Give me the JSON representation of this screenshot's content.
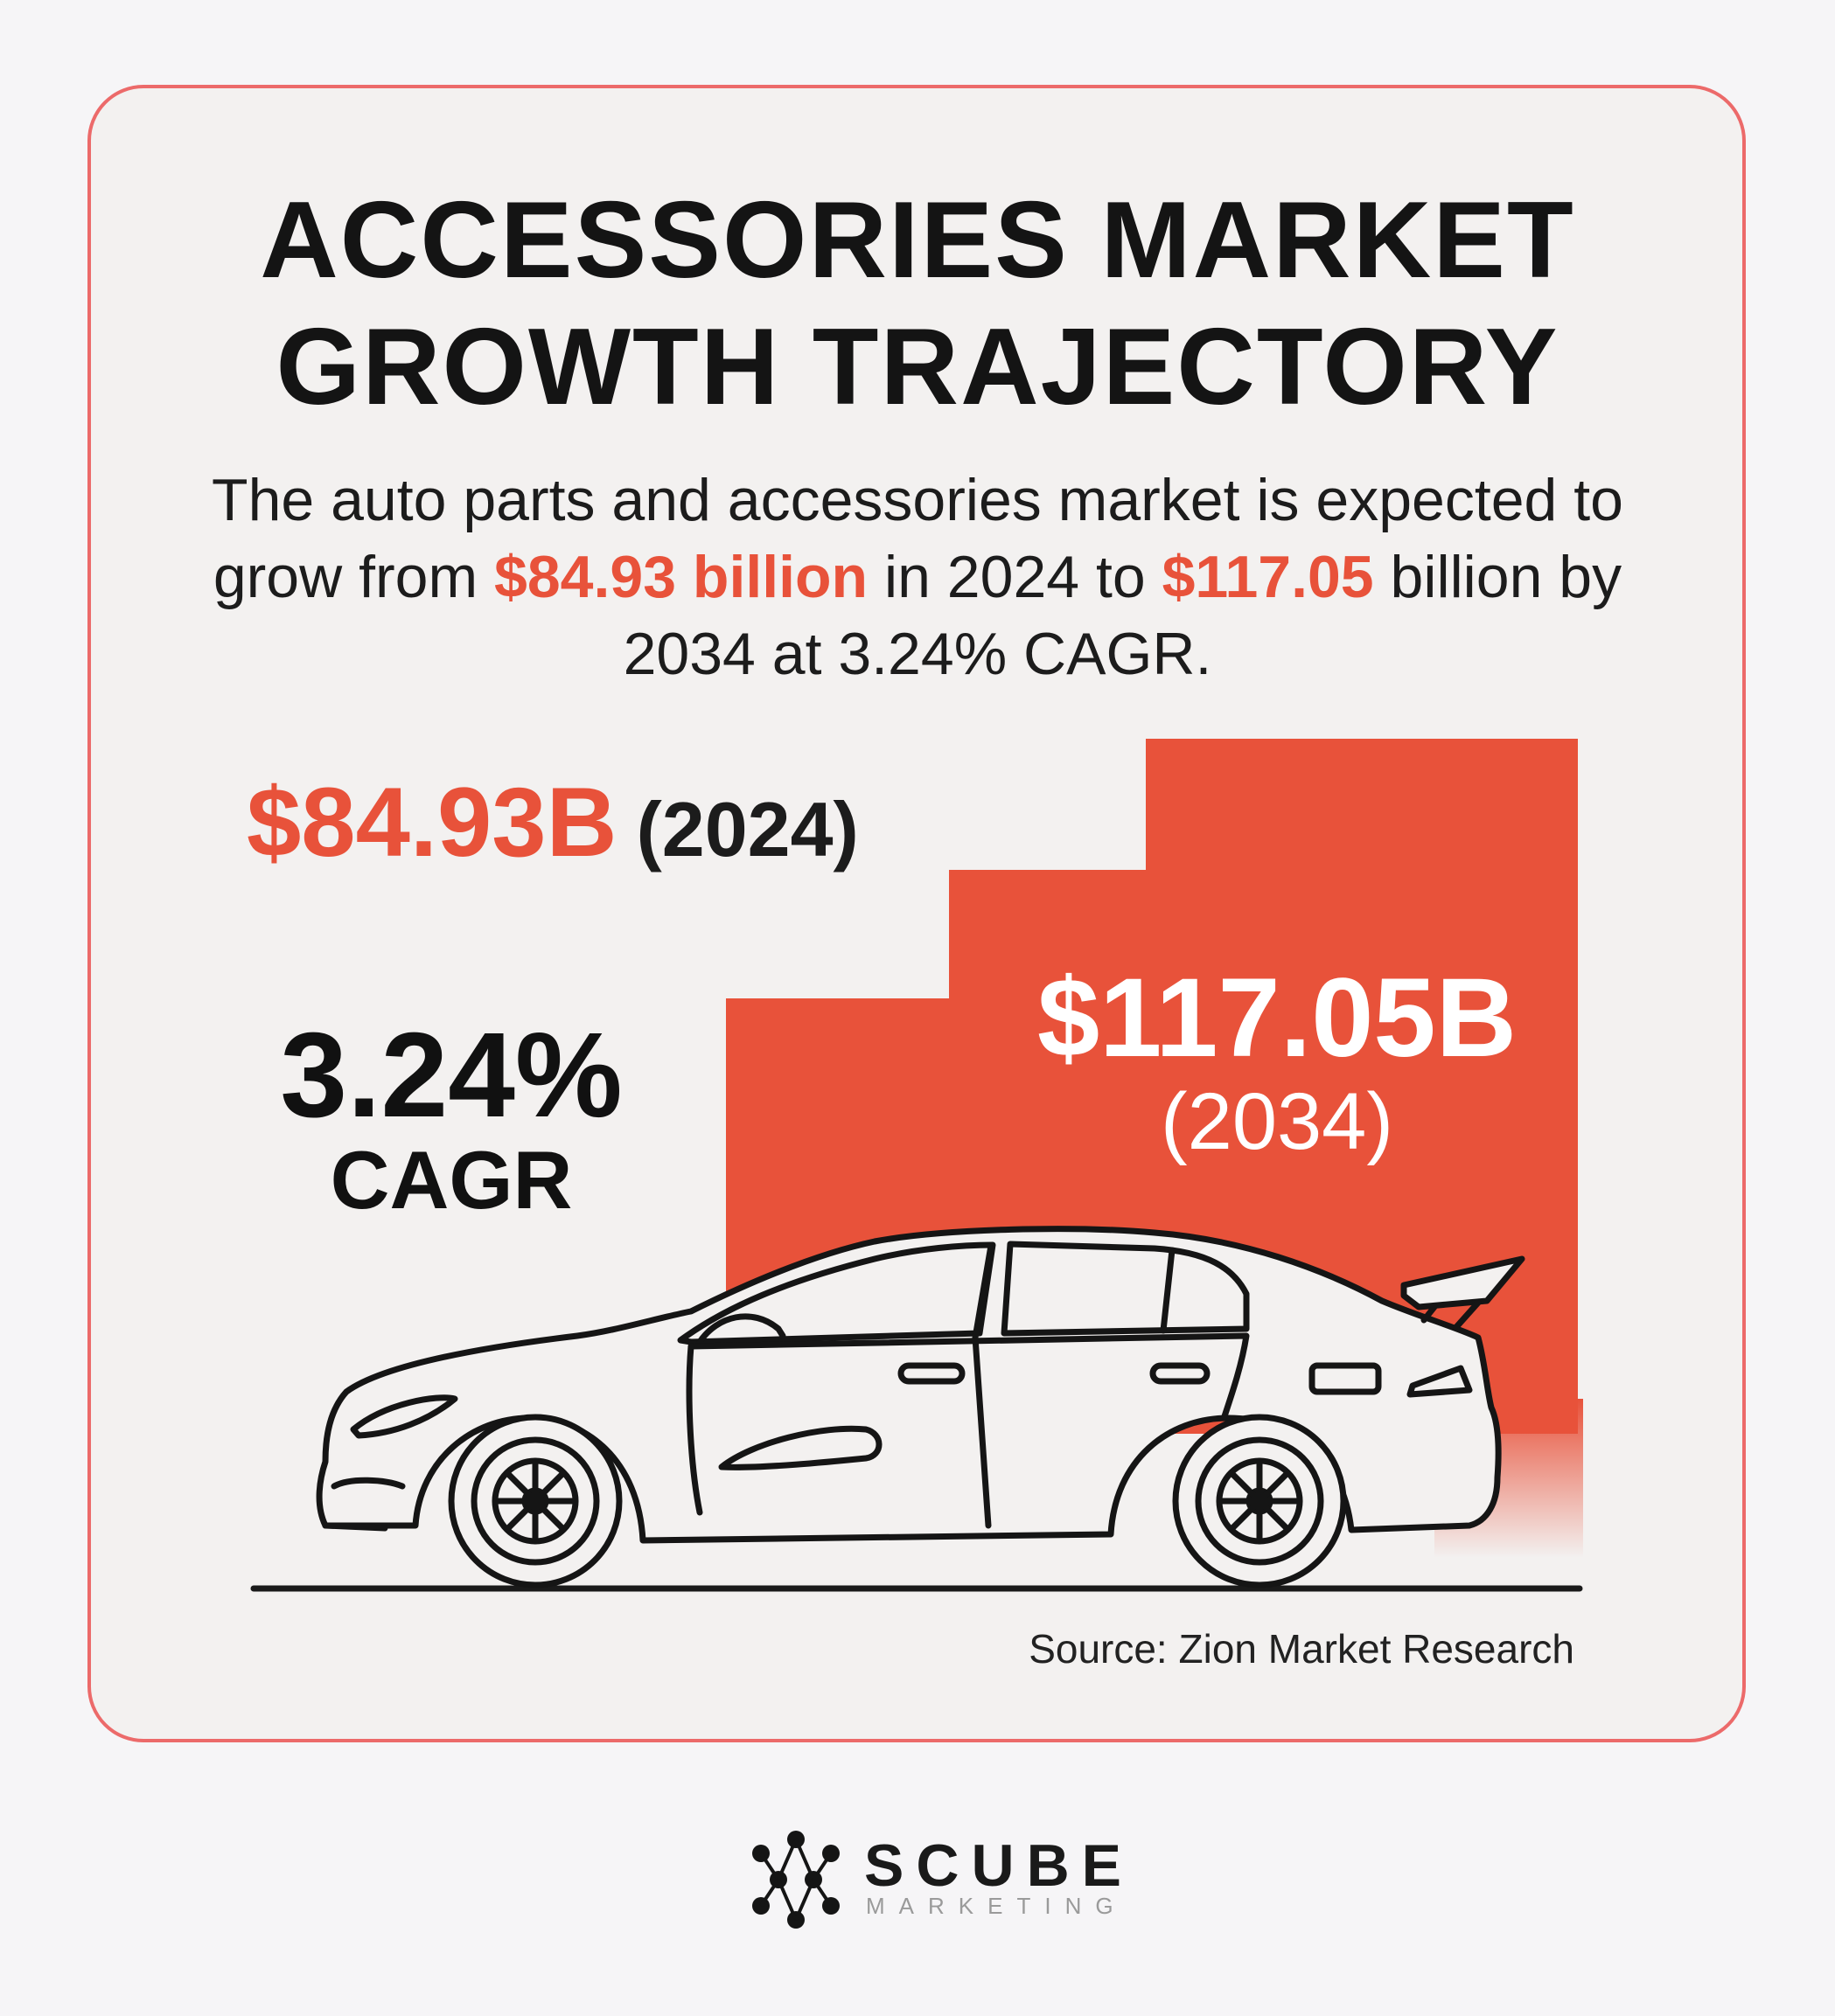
{
  "infographic": {
    "title_line1": "ACCESSORIES MARKET",
    "title_line2": "GROWTH TRAJECTORY",
    "description": {
      "part1": "The auto parts and accessories market is expected to grow from ",
      "highlight1": "$84.93 billion",
      "part2": " in 2024 to ",
      "highlight2": "$117.05",
      "part3": " billion by 2034 at 3.24% CAGR."
    },
    "start_value": "$84.93B",
    "start_year": "(2024)",
    "cagr_value": "3.24%",
    "cagr_label": "CAGR",
    "end_value": "$117.05B",
    "end_year": "(2034)",
    "source": "Source: Zion Market Research"
  },
  "brand": {
    "name": "SCUBE",
    "tagline": "MARKETING"
  },
  "colors": {
    "accent": "#e8523a",
    "card_border": "#ec6a6a",
    "card_background": "#f3f1f0",
    "page_background": "#f6f5f7",
    "text": "#141414"
  },
  "icons": [
    "car-illustration",
    "scube-logo-icon"
  ]
}
